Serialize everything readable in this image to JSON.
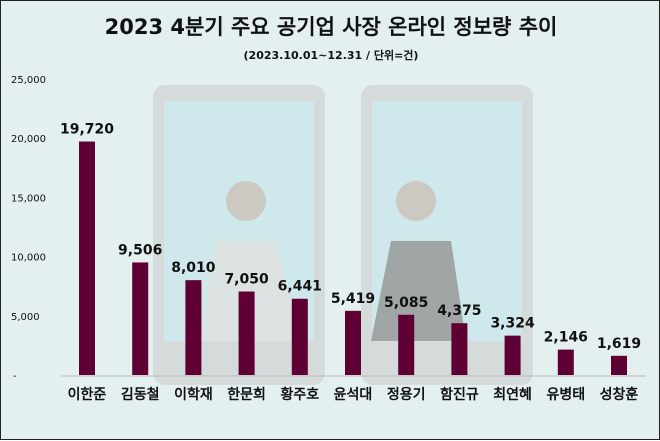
{
  "chart_data": {
    "type": "bar",
    "title": "2023 4분기 주요 공기업 사장 온라인 정보량 추이",
    "subtitle": "(2023.10.01~12.31 / 단위=건)",
    "categories": [
      "이한준",
      "김동철",
      "이학재",
      "한문희",
      "황주호",
      "윤석대",
      "정용기",
      "함진규",
      "최연혜",
      "유병태",
      "성창훈"
    ],
    "values": [
      19720,
      9506,
      8010,
      7050,
      6441,
      5419,
      5085,
      4375,
      3324,
      2146,
      1619
    ],
    "value_labels": [
      "19,720",
      "9,506",
      "8,010",
      "7,050",
      "6,441",
      "5,419",
      "5,085",
      "4,375",
      "3,324",
      "2,146",
      "1,619"
    ],
    "yticks": [
      0,
      5000,
      10000,
      15000,
      20000,
      25000
    ],
    "ytick_labels": [
      "-",
      "5,000",
      "10,000",
      "15,000",
      "20,000",
      "25,000"
    ],
    "ylim": [
      0,
      25000
    ],
    "xlabel": "",
    "ylabel": "",
    "grid": false,
    "bar_color": "#5e0033"
  }
}
